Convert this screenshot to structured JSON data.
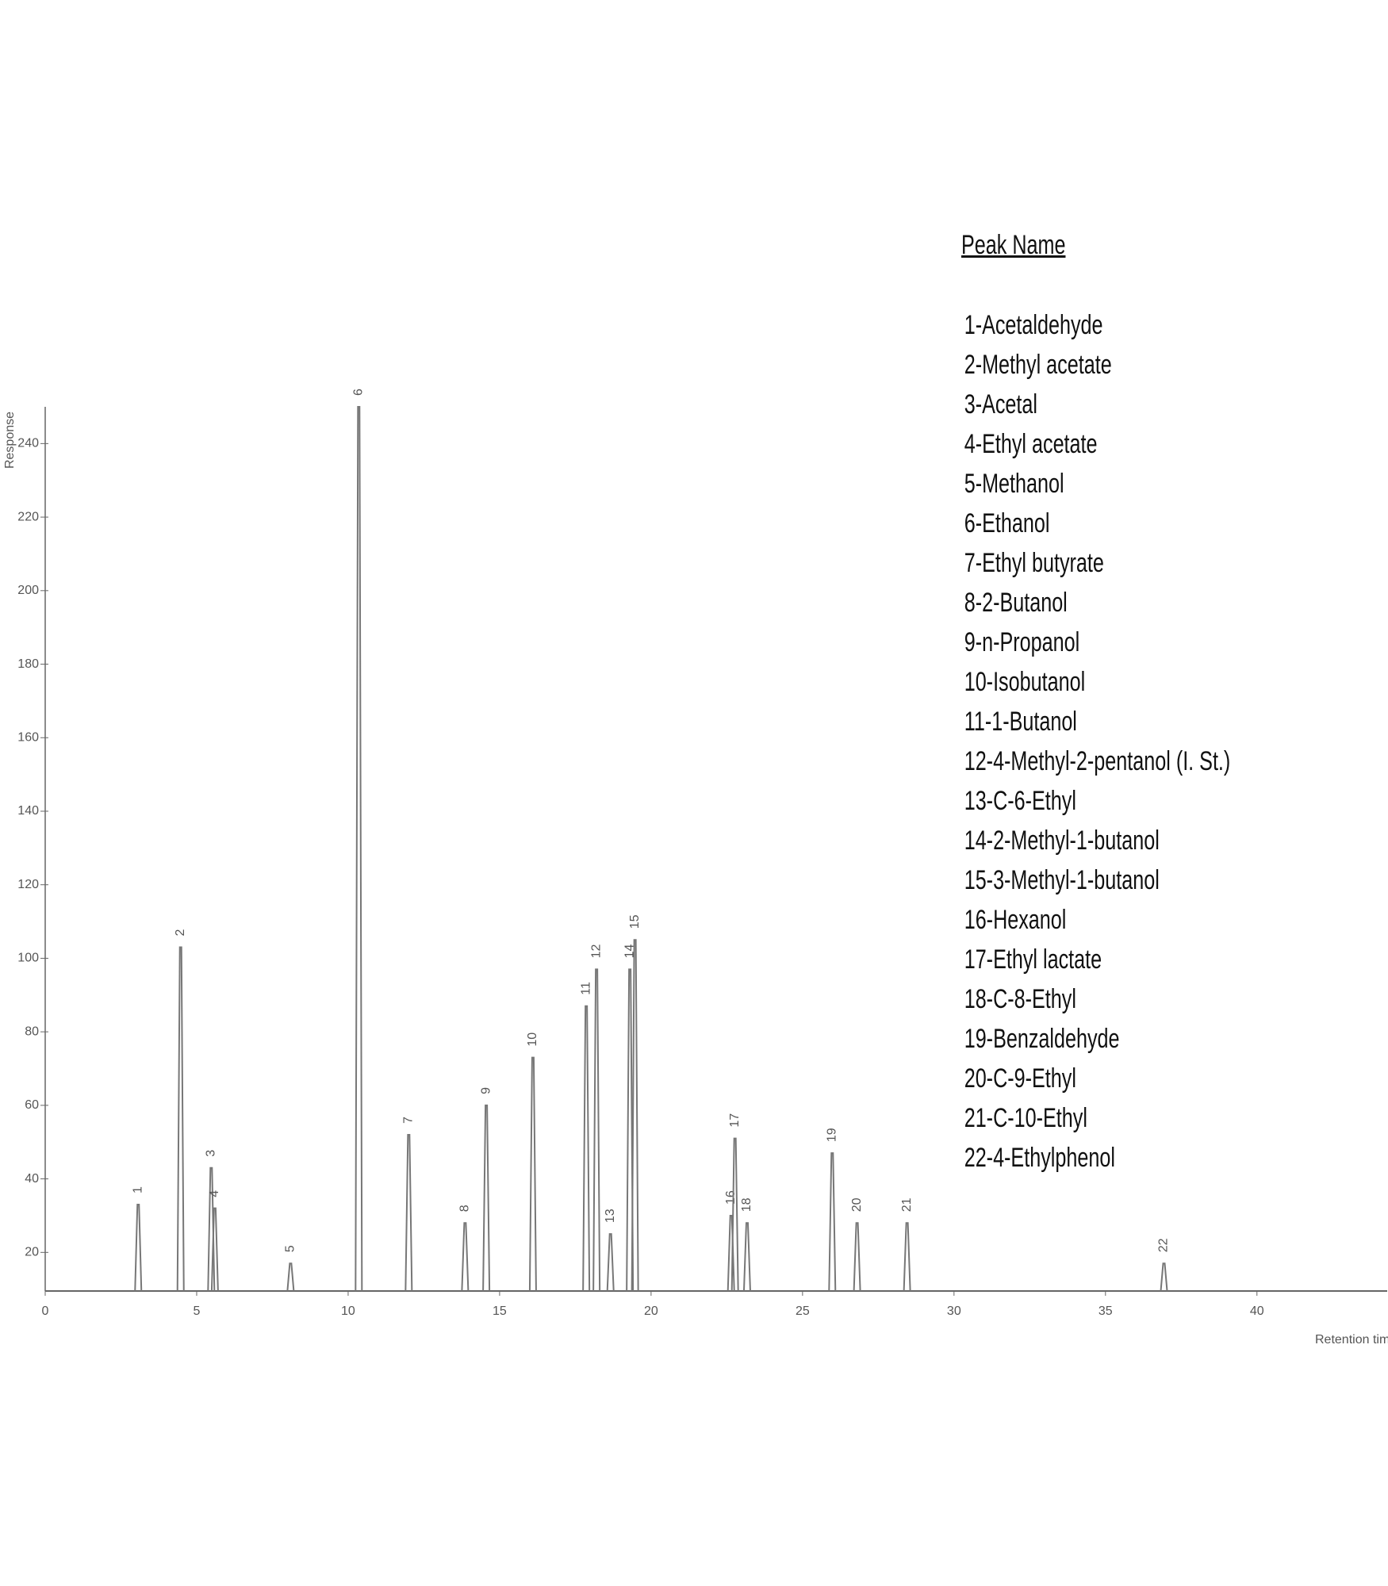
{
  "chart_data": {
    "type": "line",
    "x_label": "Retention time",
    "y_label": "Response",
    "x": [
      3.07,
      4.47,
      5.48,
      5.6,
      8.1,
      10.35,
      12.0,
      13.86,
      14.56,
      16.1,
      17.86,
      18.2,
      18.66,
      19.3,
      19.47,
      22.64,
      22.77,
      23.17,
      25.98,
      26.8,
      28.45,
      36.93
    ],
    "values": [
      33,
      103,
      43,
      32,
      17,
      250,
      52,
      28,
      60,
      73,
      87,
      97,
      25,
      97,
      105,
      30,
      51,
      28,
      47,
      28,
      28,
      17
    ],
    "peak_labels": [
      "1",
      "2",
      "3",
      "4",
      "5",
      "6",
      "7",
      "8",
      "9",
      "10",
      "11",
      "12",
      "13",
      "14",
      "15",
      "16",
      "17",
      "18",
      "19",
      "20",
      "21",
      "22"
    ],
    "color": "#777777",
    "xlim": [
      0,
      44.3
    ],
    "ylim": [
      9.5,
      250
    ],
    "xticks": [
      0,
      5,
      10,
      15,
      20,
      25,
      30,
      35,
      40
    ],
    "yticks": [
      20,
      40,
      60,
      80,
      100,
      120,
      140,
      160,
      180,
      200,
      220,
      240
    ],
    "legend_title": "Peak Name",
    "peak_names": [
      "1-Acetaldehyde",
      "2-Methyl acetate",
      "3-Acetal",
      "4-Ethyl acetate",
      "5-Methanol",
      "6-Ethanol",
      "7-Ethyl butyrate",
      "8-2-Butanol",
      "9-n-Propanol",
      "10-Isobutanol",
      "11-1-Butanol",
      "12-4-Methyl-2-pentanol (I. St.)",
      "13-C-6-Ethyl",
      "14-2-Methyl-1-butanol",
      "15-3-Methyl-1-butanol",
      "16-Hexanol",
      "17-Ethyl lactate",
      "18-C-8-Ethyl",
      "19-Benzaldehyde",
      "20-C-9-Ethyl",
      "21-C-10-Ethyl",
      "22-4-Ethylphenol"
    ]
  }
}
